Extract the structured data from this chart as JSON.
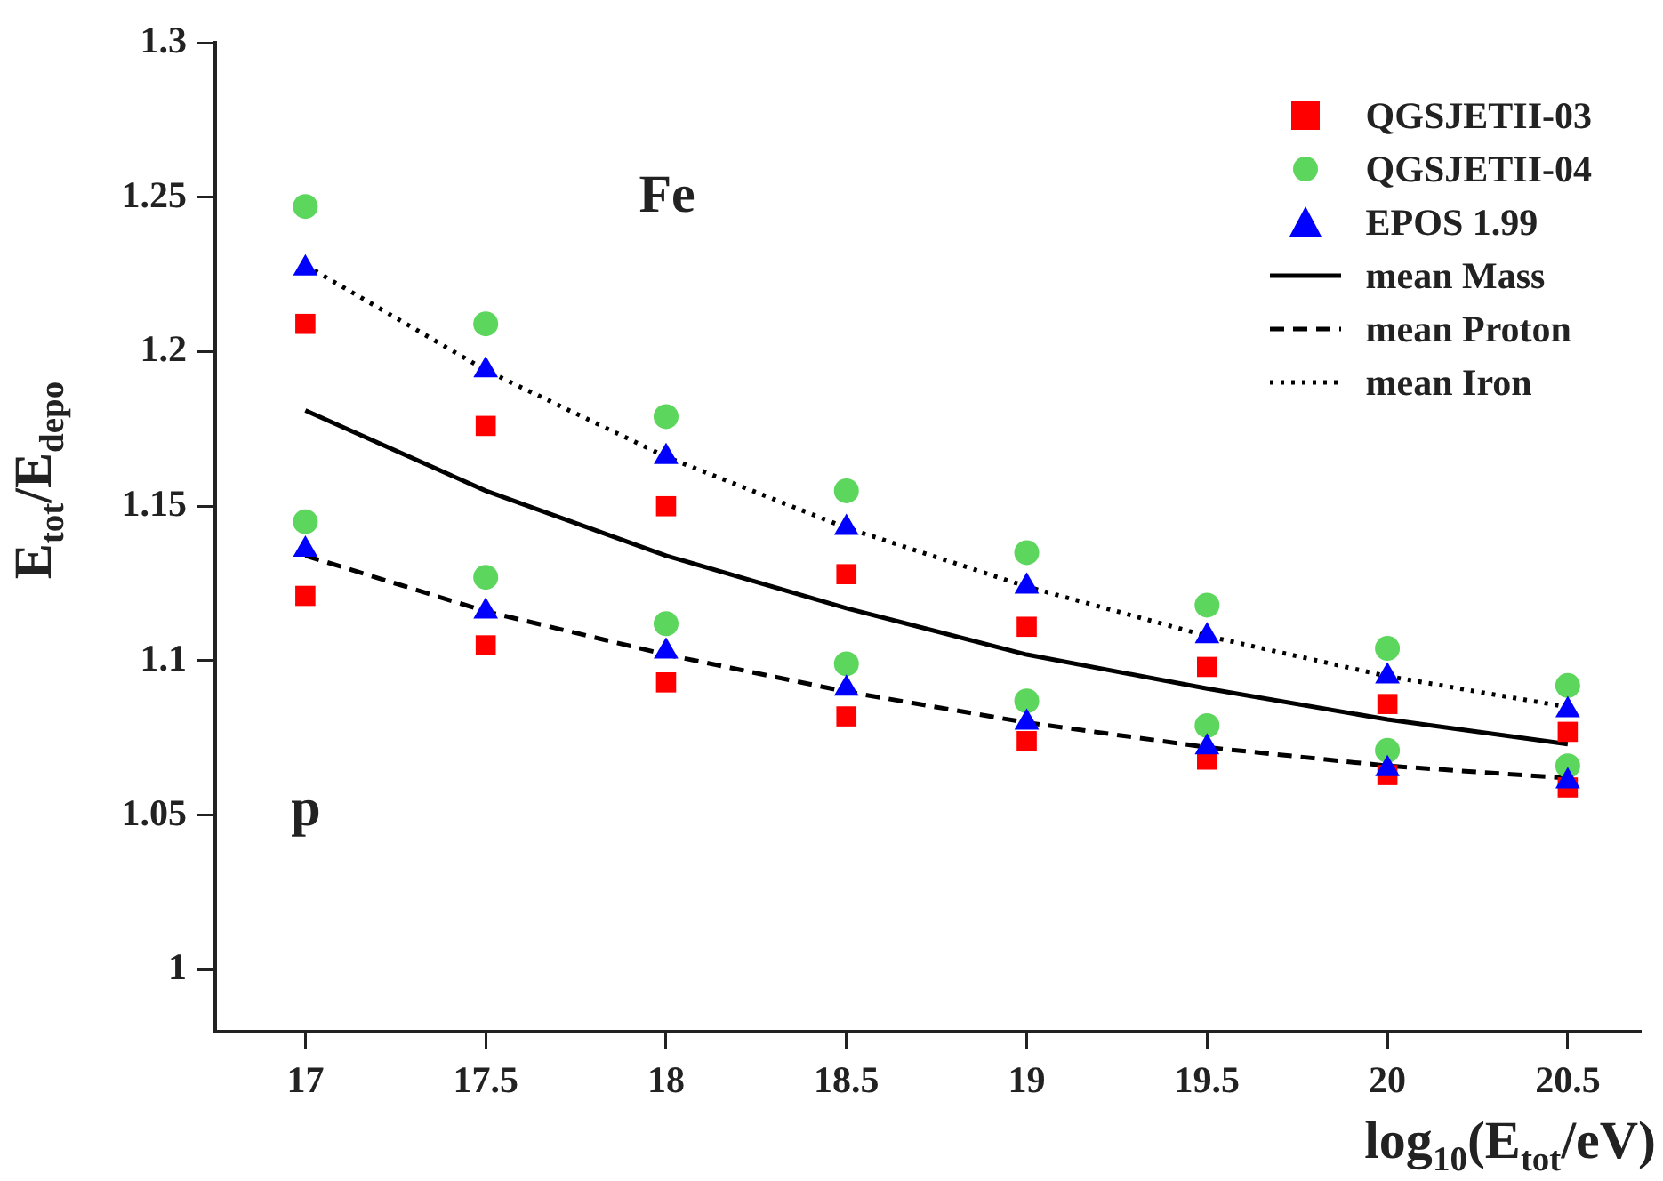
{
  "chart_data": {
    "type": "scatter",
    "xlabel": "log$_{10}$(E$_{tot}$/eV)",
    "ylabel": "E$_{tot}$/E$_{depo}$",
    "xlim": [
      16.75,
      20.7
    ],
    "xticks": [
      17,
      17.5,
      18,
      18.5,
      19,
      19.5,
      20,
      20.5
    ],
    "ylim": [
      0.98,
      1.3
    ],
    "yticks": [
      1,
      1.05,
      1.1,
      1.15,
      1.2,
      1.25,
      1.3
    ],
    "grid": false,
    "legend": "top right",
    "annotations": [
      "Fe",
      "p"
    ],
    "series": [
      {
        "name": "QGSJETII-03",
        "type": "scatter",
        "marker": "square",
        "color": "#ff0000",
        "x": [
          17,
          17.5,
          18,
          18.5,
          19,
          19.5,
          20,
          20.5,
          17,
          17.5,
          18,
          18.5,
          19,
          19.5,
          20,
          20.5
        ],
        "values": [
          1.209,
          1.176,
          1.15,
          1.128,
          1.111,
          1.098,
          1.086,
          1.077,
          1.121,
          1.105,
          1.093,
          1.082,
          1.074,
          1.068,
          1.063,
          1.059
        ]
      },
      {
        "name": "QGSJETII-04",
        "type": "scatter",
        "marker": "circle",
        "color": "#5cd65c",
        "x": [
          17,
          17.5,
          18,
          18.5,
          19,
          19.5,
          20,
          20.5,
          17,
          17.5,
          18,
          18.5,
          19,
          19.5,
          20,
          20.5
        ],
        "values": [
          1.247,
          1.209,
          1.179,
          1.155,
          1.135,
          1.118,
          1.104,
          1.092,
          1.145,
          1.127,
          1.112,
          1.099,
          1.087,
          1.079,
          1.071,
          1.066
        ]
      },
      {
        "name": "EPOS 1.99",
        "type": "scatter",
        "marker": "triangle",
        "color": "#0000ff",
        "x": [
          17,
          17.5,
          18,
          18.5,
          19,
          19.5,
          20,
          20.5,
          17,
          17.5,
          18,
          18.5,
          19,
          19.5,
          20,
          20.5
        ],
        "values": [
          1.227,
          1.194,
          1.166,
          1.143,
          1.124,
          1.108,
          1.095,
          1.084,
          1.136,
          1.116,
          1.103,
          1.091,
          1.08,
          1.072,
          1.065,
          1.061
        ]
      },
      {
        "name": "mean Mass",
        "type": "line",
        "line_style": "solid",
        "marker": "none",
        "color": "#000000",
        "x": [
          17,
          17.5,
          18,
          18.5,
          19,
          19.5,
          20,
          20.5
        ],
        "values": [
          1.181,
          1.155,
          1.134,
          1.117,
          1.102,
          1.091,
          1.081,
          1.073
        ]
      },
      {
        "name": "mean Proton",
        "type": "line",
        "line_style": "dashed",
        "marker": "none",
        "color": "#000000",
        "x": [
          17,
          17.5,
          18,
          18.5,
          19,
          19.5,
          20,
          20.5
        ],
        "values": [
          1.134,
          1.116,
          1.102,
          1.09,
          1.08,
          1.072,
          1.066,
          1.062
        ]
      },
      {
        "name": "mean Iron",
        "type": "line",
        "line_style": "dotted",
        "marker": "none",
        "color": "#000000",
        "x": [
          17,
          17.5,
          18,
          18.5,
          19,
          19.5,
          20,
          20.5
        ],
        "values": [
          1.228,
          1.194,
          1.166,
          1.143,
          1.124,
          1.108,
          1.095,
          1.085
        ]
      }
    ]
  }
}
